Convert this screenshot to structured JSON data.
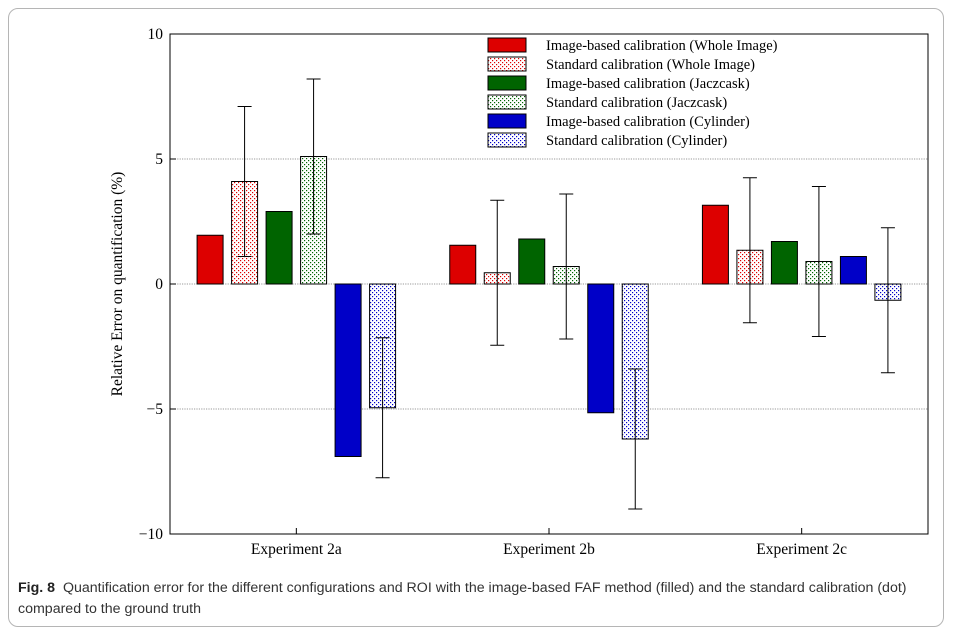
{
  "caption": {
    "label": "Fig. 8",
    "text": "Quantification error for the different configurations and ROI with the image-based FAF method (filled) and the standard calibration (dot) compared to the ground truth"
  },
  "chart_data": {
    "type": "bar",
    "ylabel": "Relative Error on quantification (%)",
    "xlabel": "",
    "ylim": [
      -10,
      10
    ],
    "yticks": [
      -10,
      -5,
      0,
      5,
      10
    ],
    "ytick_labels": [
      "−10",
      "−5",
      "0",
      "5",
      "10"
    ],
    "grid": "horizontal dotted at 5, 0, -5",
    "legend_position": "top-right",
    "categories": [
      "Experiment 2a",
      "Experiment 2b",
      "Experiment 2c"
    ],
    "series": [
      {
        "name": "Image-based calibration (Whole Image)",
        "fill": "solid",
        "color": "#dd0000",
        "values": [
          1.95,
          1.55,
          3.15
        ],
        "errors": [
          null,
          null,
          null
        ]
      },
      {
        "name": "Standard calibration (Whole Image)",
        "fill": "dot",
        "color": "#dd0000",
        "values": [
          4.1,
          0.45,
          1.35
        ],
        "errors": [
          3.0,
          2.9,
          2.9
        ]
      },
      {
        "name": "Image-based calibration (Jaczcask)",
        "fill": "solid",
        "color": "#006400",
        "values": [
          2.9,
          1.8,
          1.7
        ],
        "errors": [
          null,
          null,
          null
        ]
      },
      {
        "name": "Standard calibration (Jaczcask)",
        "fill": "dot",
        "color": "#006400",
        "values": [
          5.1,
          0.7,
          0.9
        ],
        "errors": [
          3.1,
          2.9,
          3.0
        ]
      },
      {
        "name": "Image-based calibration (Cylinder)",
        "fill": "solid",
        "color": "#0000c8",
        "values": [
          -6.9,
          -5.15,
          1.1
        ],
        "errors": [
          null,
          null,
          null
        ]
      },
      {
        "name": "Standard calibration (Cylinder)",
        "fill": "dot",
        "color": "#0000c8",
        "values": [
          -4.95,
          -6.2,
          -0.65
        ],
        "errors": [
          2.8,
          2.8,
          2.9
        ]
      }
    ]
  }
}
